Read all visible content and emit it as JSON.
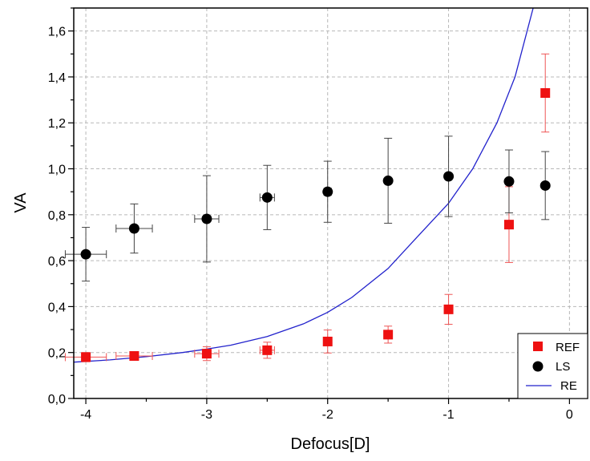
{
  "chart_data": {
    "type": "scatter",
    "title": "",
    "xlabel": "Defocus[D]",
    "ylabel": "VA",
    "xlim": [
      -4.1,
      0.15
    ],
    "ylim": [
      0.0,
      1.7
    ],
    "grid": true,
    "legend_position": "bottom-right",
    "x_ticks": [
      -4,
      -3,
      -2,
      -1,
      0
    ],
    "x_tick_labels": [
      "-4",
      "-3",
      "-2",
      "-1",
      "0"
    ],
    "y_ticks": [
      0.0,
      0.2,
      0.4,
      0.6,
      0.8,
      1.0,
      1.2,
      1.4,
      1.6
    ],
    "y_tick_labels": [
      "0,0",
      "0,2",
      "0,4",
      "0,6",
      "0,8",
      "1,0",
      "1,2",
      "1,4",
      "1,6"
    ],
    "series": [
      {
        "name": "REF",
        "marker": "square",
        "color": "#ee1111",
        "points": [
          {
            "x": -4.0,
            "y": 0.18,
            "yerr": 0.02,
            "xerr": 0.17
          },
          {
            "x": -3.6,
            "y": 0.185,
            "yerr": 0.015,
            "xerr": 0.15
          },
          {
            "x": -3.0,
            "y": 0.195,
            "yerr": 0.03,
            "xerr": 0.1
          },
          {
            "x": -2.5,
            "y": 0.21,
            "yerr": 0.035,
            "xerr": 0.06
          },
          {
            "x": -2.0,
            "y": 0.248,
            "yerr": 0.05,
            "xerr": 0.03
          },
          {
            "x": -1.5,
            "y": 0.278,
            "yerr": 0.037,
            "xerr": 0.0
          },
          {
            "x": -1.0,
            "y": 0.388,
            "yerr": 0.065,
            "xerr": 0.0
          },
          {
            "x": -0.5,
            "y": 0.757,
            "yerr": 0.165,
            "xerr": 0.0
          },
          {
            "x": -0.2,
            "y": 1.33,
            "yerr": 0.17,
            "xerr": 0.0
          }
        ]
      },
      {
        "name": "LS",
        "marker": "circle",
        "color": "#000000",
        "points": [
          {
            "x": -4.0,
            "y": 0.628,
            "yerr": 0.117,
            "xerr": 0.17
          },
          {
            "x": -3.6,
            "y": 0.74,
            "yerr": 0.107,
            "xerr": 0.15
          },
          {
            "x": -3.0,
            "y": 0.782,
            "yerr": 0.188,
            "xerr": 0.1
          },
          {
            "x": -2.5,
            "y": 0.875,
            "yerr": 0.14,
            "xerr": 0.06
          },
          {
            "x": -2.0,
            "y": 0.9,
            "yerr": 0.133,
            "xerr": 0.03
          },
          {
            "x": -1.5,
            "y": 0.948,
            "yerr": 0.185,
            "xerr": 0.0
          },
          {
            "x": -1.0,
            "y": 0.967,
            "yerr": 0.175,
            "xerr": 0.0
          },
          {
            "x": -0.5,
            "y": 0.945,
            "yerr": 0.137,
            "xerr": 0.0
          },
          {
            "x": -0.2,
            "y": 0.927,
            "yerr": 0.148,
            "xerr": 0.0
          }
        ]
      },
      {
        "name": "RE",
        "type": "line",
        "color": "#2222cc",
        "x": [
          -4.1,
          -3.8,
          -3.5,
          -3.2,
          -3.0,
          -2.8,
          -2.5,
          -2.2,
          -2.0,
          -1.8,
          -1.5,
          -1.3,
          -1.0,
          -0.8,
          -0.6,
          -0.45,
          -0.3
        ],
        "y": [
          0.158,
          0.168,
          0.182,
          0.2,
          0.215,
          0.232,
          0.27,
          0.325,
          0.375,
          0.44,
          0.566,
          0.68,
          0.85,
          1.0,
          1.2,
          1.4,
          1.7
        ]
      }
    ]
  }
}
